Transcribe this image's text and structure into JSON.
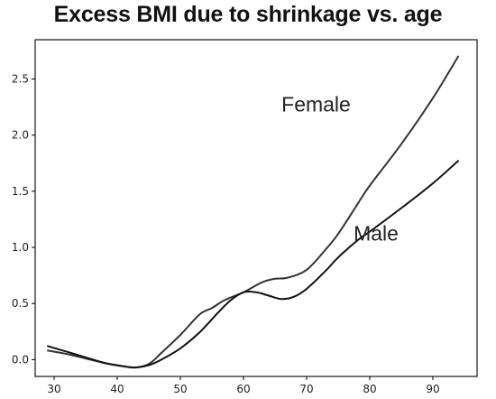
{
  "chart_data": {
    "type": "line",
    "title": "Excess BMI due to shrinkage vs. age",
    "xlabel": "",
    "ylabel": "",
    "xlim": [
      27,
      97
    ],
    "ylim": [
      -0.15,
      2.85
    ],
    "x_ticks": [
      30,
      40,
      50,
      60,
      70,
      80,
      90
    ],
    "y_ticks": [
      0.0,
      0.5,
      1.0,
      1.5,
      2.0,
      2.5
    ],
    "x_tick_labels": [
      "30",
      "40",
      "50",
      "60",
      "70",
      "80",
      "90"
    ],
    "y_tick_labels": [
      "0.0",
      "0.5",
      "1.0",
      "1.5",
      "2.0",
      "2.5"
    ],
    "grid": false,
    "legend": "none (series labeled directly on lines)",
    "series": [
      {
        "name": "Female",
        "color": "#333333",
        "x": [
          29,
          32,
          35,
          38,
          41,
          43,
          45,
          47,
          50,
          53,
          55,
          57,
          60,
          63,
          65,
          67,
          70,
          73,
          75,
          78,
          80,
          85,
          90,
          94
        ],
        "y": [
          0.08,
          0.05,
          0.01,
          -0.03,
          -0.06,
          -0.07,
          -0.04,
          0.06,
          0.22,
          0.4,
          0.46,
          0.53,
          0.6,
          0.69,
          0.72,
          0.73,
          0.8,
          0.98,
          1.12,
          1.38,
          1.55,
          1.92,
          2.33,
          2.7
        ]
      },
      {
        "name": "Male",
        "color": "#111111",
        "x": [
          29,
          32,
          35,
          38,
          41,
          43,
          45,
          47,
          50,
          53,
          56,
          58,
          60,
          62,
          64,
          66,
          68,
          70,
          73,
          75,
          78,
          80,
          85,
          90,
          94
        ],
        "y": [
          0.12,
          0.07,
          0.02,
          -0.03,
          -0.06,
          -0.07,
          -0.05,
          0.0,
          0.1,
          0.24,
          0.42,
          0.53,
          0.6,
          0.6,
          0.57,
          0.54,
          0.56,
          0.63,
          0.79,
          0.91,
          1.06,
          1.14,
          1.35,
          1.57,
          1.77
        ]
      }
    ]
  }
}
